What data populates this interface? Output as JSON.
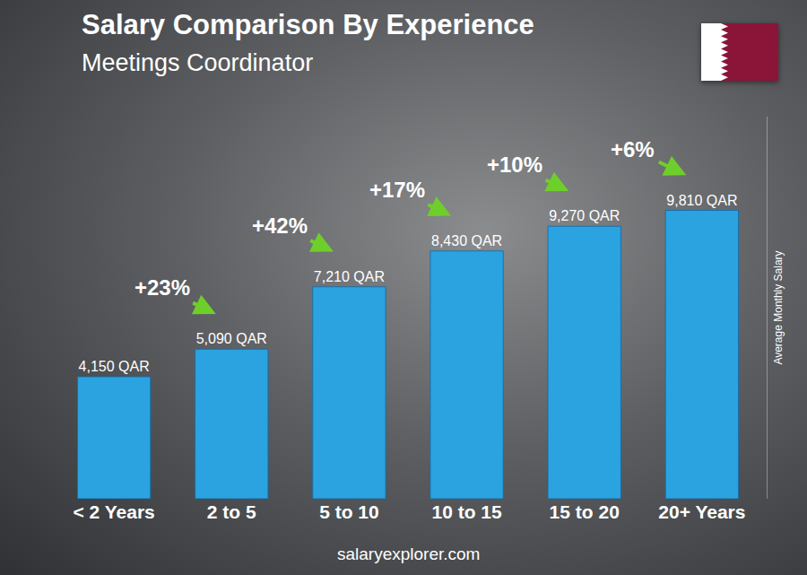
{
  "chart_data": {
    "type": "bar",
    "title": "Salary Comparison By Experience",
    "subtitle": "Meetings Coordinator",
    "ylabel": "Average Monthly Salary",
    "footer": "salaryexplorer.com",
    "categories": [
      "< 2 Years",
      "2 to 5",
      "5 to 10",
      "10 to 15",
      "15 to 20",
      "20+ Years"
    ],
    "values": [
      4150,
      5090,
      7210,
      8430,
      9270,
      9810
    ],
    "value_labels": [
      "4,150 QAR",
      "5,090 QAR",
      "7,210 QAR",
      "8,430 QAR",
      "9,270 QAR",
      "9,810 QAR"
    ],
    "color": "#2ba3e0",
    "data_labels": true,
    "tick_labels": "x",
    "grid": false,
    "ylim": [
      0,
      13000
    ],
    "annotations": [
      {
        "between": [
          "< 2 Years",
          "2 to 5"
        ],
        "text": "+23%"
      },
      {
        "between": [
          "2 to 5",
          "5 to 10"
        ],
        "text": "+42%"
      },
      {
        "between": [
          "5 to 10",
          "10 to 15"
        ],
        "text": "+17%"
      },
      {
        "between": [
          "10 to 15",
          "15 to 20"
        ],
        "text": "+10%"
      },
      {
        "between": [
          "15 to 20",
          "20+ Years"
        ],
        "text": "+6%"
      }
    ]
  }
}
